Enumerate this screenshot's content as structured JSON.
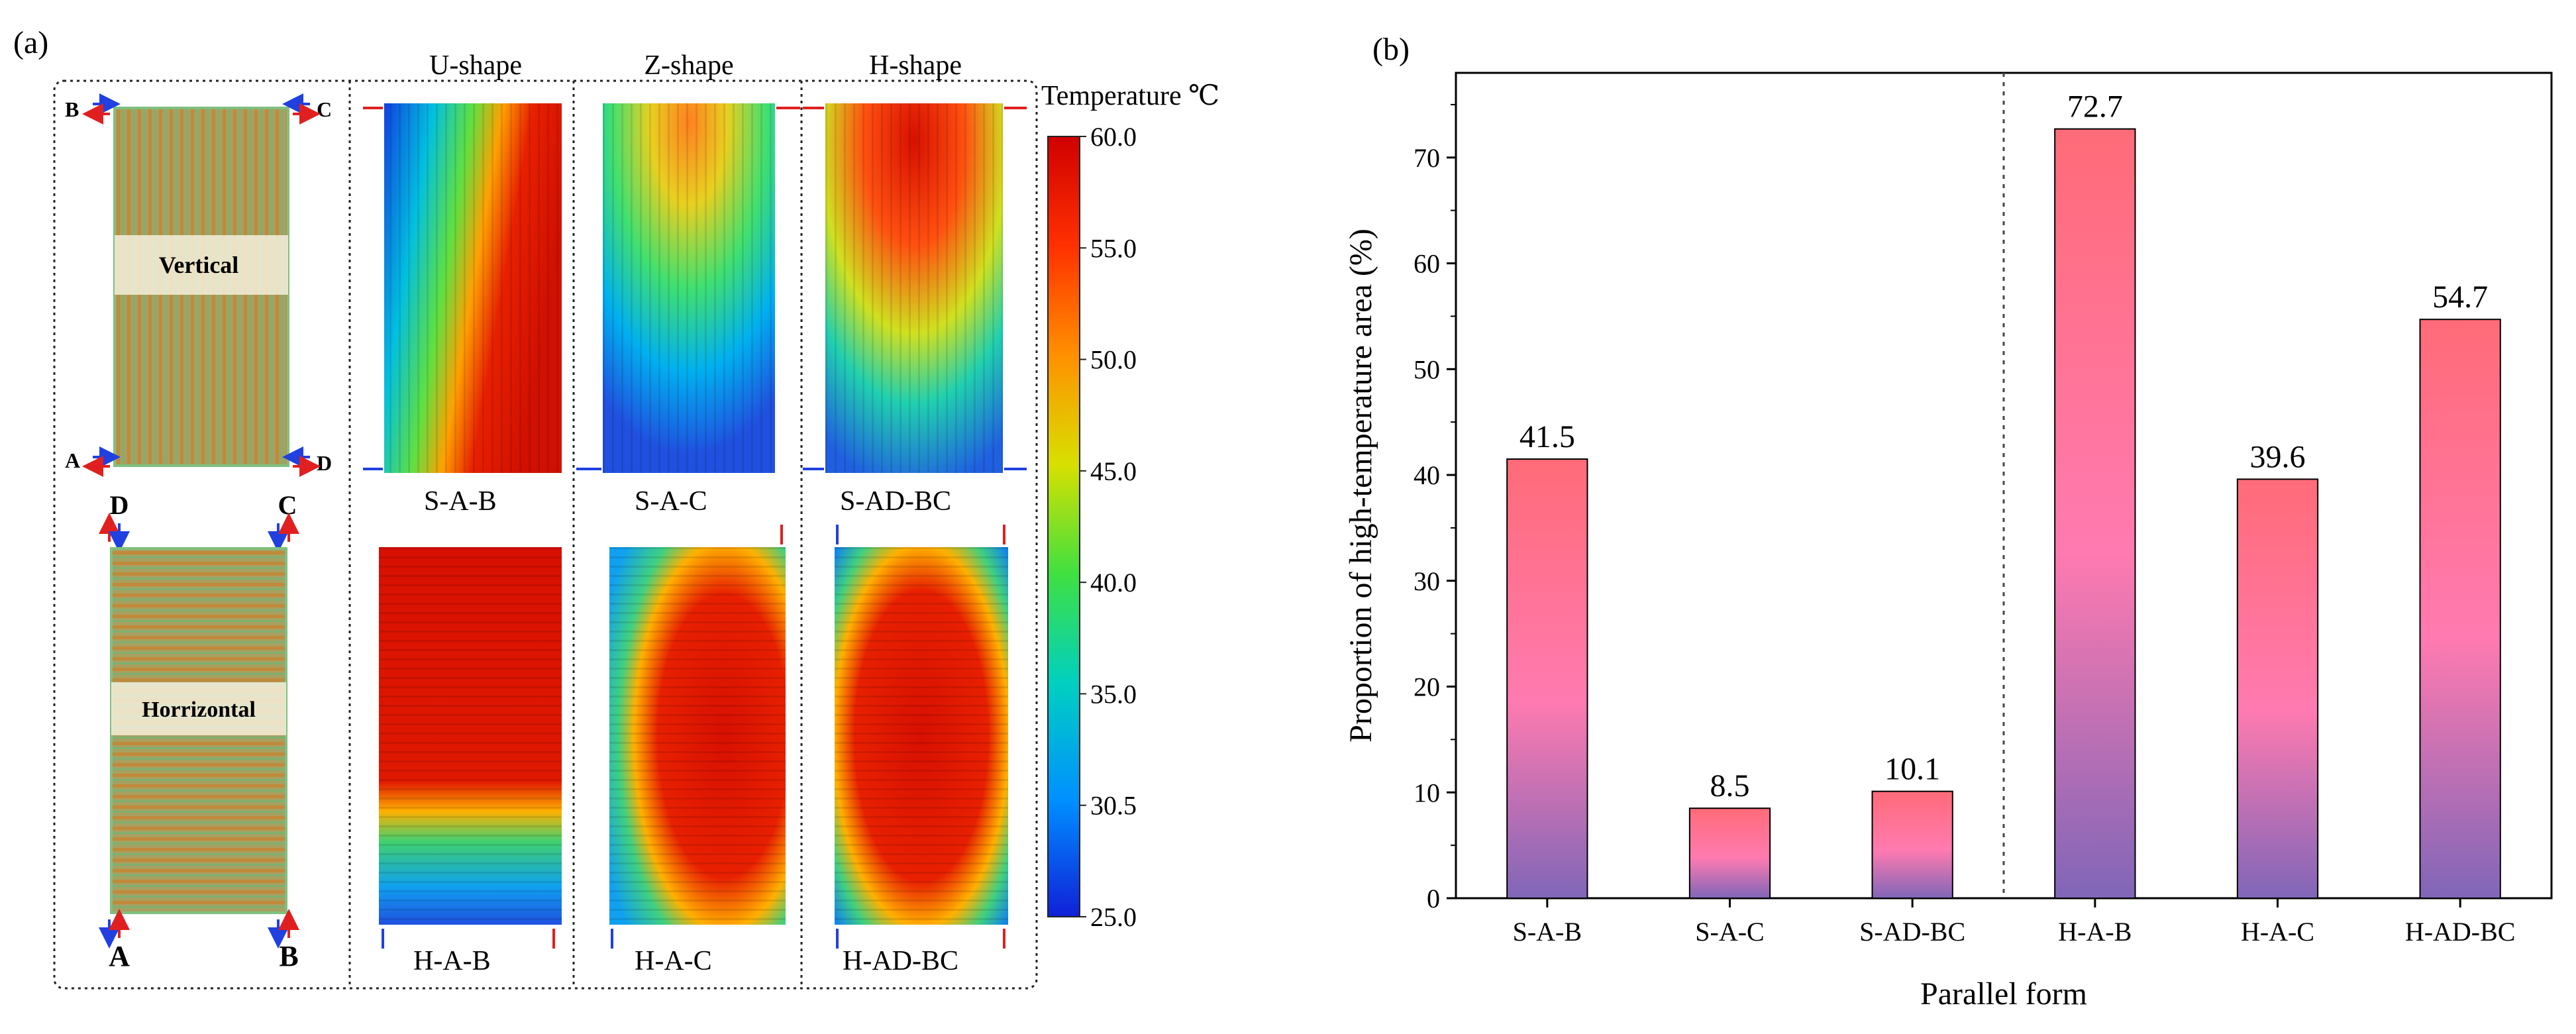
{
  "panel_a": {
    "label": "(a)",
    "shape_headers": [
      "U-shape",
      "Z-shape",
      "H-shape"
    ],
    "vertical_label": "Vertical",
    "horizontal_label": "Horrizontal",
    "vertical_ports": {
      "top_left": "B",
      "top_right": "C",
      "bottom_left": "A",
      "bottom_right": "D"
    },
    "horizontal_ports": {
      "top_left": "D",
      "top_right": "C",
      "bottom_left": "A",
      "bottom_right": "B"
    },
    "captions_top": [
      "S-A-B",
      "S-A-C",
      "S-AD-BC"
    ],
    "captions_bottom": [
      "H-A-B",
      "H-A-C",
      "H-AD-BC"
    ],
    "colorbar": {
      "title": "Temperature ℃",
      "ticks": [
        "60.0",
        "55.0",
        "50.0",
        "45.0",
        "40.0",
        "35.0",
        "30.5",
        "25.0"
      ]
    }
  },
  "panel_b": {
    "label": "(b)"
  },
  "chart_data": {
    "type": "bar",
    "categories": [
      "S-A-B",
      "S-A-C",
      "S-AD-BC",
      "H-A-B",
      "H-A-C",
      "H-AD-BC"
    ],
    "values": [
      41.5,
      8.5,
      10.1,
      72.7,
      39.6,
      54.7
    ],
    "value_labels": [
      "41.5",
      "8.5",
      "10.1",
      "72.7",
      "39.6",
      "54.7"
    ],
    "xlabel": "Parallel form",
    "ylabel": "Proportion of high-temperature area (%)",
    "ylim": [
      0,
      78
    ],
    "yticks": [
      0,
      10,
      20,
      30,
      40,
      50,
      60,
      70
    ],
    "divider_after_index": 2,
    "bar_colors": {
      "top": "#ff6b78",
      "middle": "#ff7ab0",
      "bottom": "#8066b8"
    }
  }
}
